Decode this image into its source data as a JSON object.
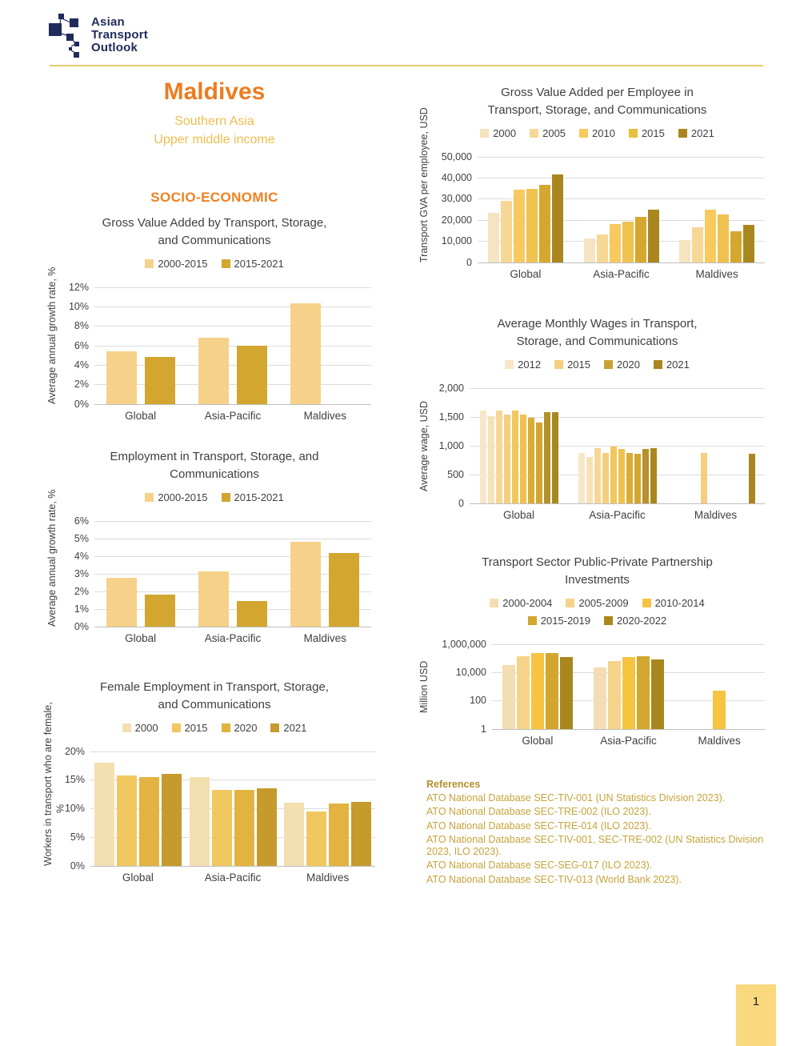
{
  "logo": {
    "lines": [
      "Asian",
      "Transport",
      "Outlook"
    ]
  },
  "header": {
    "country": "Maldives",
    "region": "Southern Asia",
    "income": "Upper middle income",
    "section": "SOCIO-ECONOMIC"
  },
  "theme": {
    "accent_orange": "#ED7C21",
    "subtitle_gold": "#EFBD4E",
    "navy_logo": "#1E2B5B",
    "rule_gold": "#E6CA6D",
    "reference_gold": "#C5A43C",
    "page_tab_bg": "#F9D87E"
  },
  "references": {
    "heading": "References",
    "items": [
      "ATO National Database SEC-TIV-001 (UN Statistics Division 2023).",
      "ATO National Database SEC-TRE-002 (ILO 2023).",
      "ATO National Database SEC-TRE-014 (ILO 2023).",
      "ATO National Database SEC-TIV-001, SEC-TRE-002 (UN Statistics Division 2023, ILO 2023).",
      "ATO National Database SEC-SEG-017 (ILO 2023).",
      "ATO National Database SEC-TIV-013 (World Bank 2023)."
    ]
  },
  "page": {
    "number": "1"
  },
  "chart_data": [
    {
      "id": "gva-growth",
      "type": "bar",
      "title": [
        "Gross Value Added by Transport, Storage,",
        "and Communications"
      ],
      "ylabel": "Average annual growth rate, %",
      "y_ticks": [
        "12%",
        "10%",
        "8%",
        "6%",
        "4%",
        "2%",
        "0%"
      ],
      "y_max": 12,
      "y_scale": "linear",
      "legend": [
        {
          "label": "2000-2015",
          "color": "#F6D189"
        },
        {
          "label": "2015-2021",
          "color": "#D2A62F"
        }
      ],
      "bar_colors": [
        "#F6D189",
        "#D2A62F"
      ],
      "groups": [
        {
          "category": "Global",
          "values": [
            5.4,
            4.8
          ]
        },
        {
          "category": "Asia-Pacific",
          "values": [
            6.8,
            6.0
          ]
        },
        {
          "category": "Maldives",
          "values": [
            10.3,
            null
          ]
        }
      ]
    },
    {
      "id": "gva-per-employee",
      "type": "bar",
      "title": [
        "Gross Value Added per Employee in",
        "Transport, Storage, and Communications"
      ],
      "ylabel": "Transport GVA per employee, USD",
      "y_ticks": [
        "50,000",
        "40,000",
        "30,000",
        "20,000",
        "10,000",
        "0"
      ],
      "y_max": 50000,
      "y_scale": "linear",
      "legend": [
        {
          "label": "2000",
          "color": "#F6E3BF"
        },
        {
          "label": "2005",
          "color": "#F7D795"
        },
        {
          "label": "2010",
          "color": "#F7C95F"
        },
        {
          "label": "2015",
          "color": "#E9C03E"
        },
        {
          "label": "2021",
          "color": "#A9871E"
        }
      ],
      "bar_colors": [
        "#F6E3BF",
        "#F7D795",
        "#F7C95F",
        "#EFC14F",
        "#D5A72E",
        "#A9871E"
      ],
      "groups": [
        {
          "category": "Global",
          "values": [
            23400,
            28800,
            34200,
            34500,
            36700,
            41300
          ]
        },
        {
          "category": "Asia-Pacific",
          "values": [
            11000,
            13000,
            18000,
            19100,
            21400,
            24900
          ]
        },
        {
          "category": "Maldives",
          "values": [
            10300,
            16400,
            24800,
            22600,
            14500,
            17800
          ]
        }
      ]
    },
    {
      "id": "employment-growth",
      "type": "bar",
      "title": [
        "Employment in Transport, Storage, and",
        "Communications"
      ],
      "ylabel": "Average annual growth rate, %",
      "y_ticks": [
        "6%",
        "5%",
        "4%",
        "3%",
        "2%",
        "1%",
        "0%"
      ],
      "y_max": 6,
      "y_scale": "linear",
      "legend": [
        {
          "label": "2000-2015",
          "color": "#F6D189"
        },
        {
          "label": "2015-2021",
          "color": "#D2A62F"
        }
      ],
      "bar_colors": [
        "#F6D189",
        "#D2A62F"
      ],
      "groups": [
        {
          "category": "Global",
          "values": [
            2.75,
            1.8
          ]
        },
        {
          "category": "Asia-Pacific",
          "values": [
            3.1,
            1.45
          ]
        },
        {
          "category": "Maldives",
          "values": [
            4.8,
            4.15
          ]
        }
      ]
    },
    {
      "id": "monthly-wages",
      "type": "bar",
      "title": [
        "Average Monthly Wages in Transport,",
        "Storage, and Communications"
      ],
      "ylabel": "Average wage, USD",
      "y_ticks": [
        "2,000",
        "1,500",
        "1,000",
        "500",
        "0"
      ],
      "y_max": 2000,
      "y_scale": "linear",
      "legend": [
        {
          "label": "2012",
          "color": "#F7E7C8"
        },
        {
          "label": "2015",
          "color": "#F3CF7E"
        },
        {
          "label": "2020",
          "color": "#C9A233"
        },
        {
          "label": "2021",
          "color": "#A9871E"
        }
      ],
      "bar_colors": [
        "#F7E7C8",
        "#F7E2B8",
        "#F6D795",
        "#F3CF7E",
        "#F2C75C",
        "#EFC24E",
        "#DAAC35",
        "#D2A62F",
        "#B5912A",
        "#A9871E"
      ],
      "groups": [
        {
          "category": "Global",
          "values": [
            1600,
            1510,
            1610,
            1530,
            1600,
            1530,
            1480,
            1400,
            1570,
            1570
          ]
        },
        {
          "category": "Asia-Pacific",
          "values": [
            875,
            800,
            955,
            875,
            980,
            935,
            875,
            860,
            935,
            945
          ]
        },
        {
          "category": "Maldives",
          "values": [
            null,
            null,
            null,
            875,
            null,
            null,
            null,
            null,
            null,
            860
          ]
        }
      ]
    },
    {
      "id": "female-employment",
      "type": "bar",
      "title": [
        "Female Employment in Transport, Storage,",
        "and Communications"
      ],
      "ylabel": [
        "Workers in transport who are female,",
        "%"
      ],
      "y_ticks": [
        "20%",
        "15%",
        "10%",
        "5%",
        "0%"
      ],
      "y_max": 20,
      "y_scale": "linear",
      "legend": [
        {
          "label": "2000",
          "color": "#F4DFB0"
        },
        {
          "label": "2015",
          "color": "#F1C75F"
        },
        {
          "label": "2020",
          "color": "#E2B340"
        },
        {
          "label": "2021",
          "color": "#C49B2C"
        }
      ],
      "bar_colors": [
        "#F4DFB0",
        "#F1C75F",
        "#E2B340",
        "#C49B2C"
      ],
      "groups": [
        {
          "category": "Global",
          "values": [
            18.0,
            15.7,
            15.5,
            16.0
          ]
        },
        {
          "category": "Asia-Pacific",
          "values": [
            15.4,
            13.2,
            13.2,
            13.5
          ]
        },
        {
          "category": "Maldives",
          "values": [
            11.0,
            9.5,
            10.9,
            11.1
          ]
        }
      ]
    },
    {
      "id": "ppp-investments",
      "type": "bar",
      "title": [
        "Transport Sector Public-Private Partnership",
        "Investments"
      ],
      "ylabel": "Million USD",
      "y_ticks": [
        "1,000,000",
        "10,000",
        "100",
        "1"
      ],
      "y_max": 1000000,
      "y_scale": "log",
      "legend_rows": [
        3,
        2
      ],
      "legend": [
        {
          "label": "2000-2004",
          "color": "#F4DDB2"
        },
        {
          "label": "2005-2009",
          "color": "#F6D38A"
        },
        {
          "label": "2010-2014",
          "color": "#F7C441"
        },
        {
          "label": "2015-2019",
          "color": "#D2A62F"
        },
        {
          "label": "2020-2022",
          "color": "#A9871E"
        }
      ],
      "bar_colors": [
        "#F4DDB2",
        "#F6D38A",
        "#F7C441",
        "#D2A62F",
        "#A9871E"
      ],
      "groups": [
        {
          "category": "Global",
          "values": [
            32000,
            140000,
            230000,
            230000,
            120000
          ]
        },
        {
          "category": "Asia-Pacific",
          "values": [
            22000,
            63000,
            110000,
            140000,
            80000
          ]
        },
        {
          "category": "Maldives",
          "values": [
            null,
            null,
            500,
            null,
            null
          ]
        }
      ]
    }
  ]
}
